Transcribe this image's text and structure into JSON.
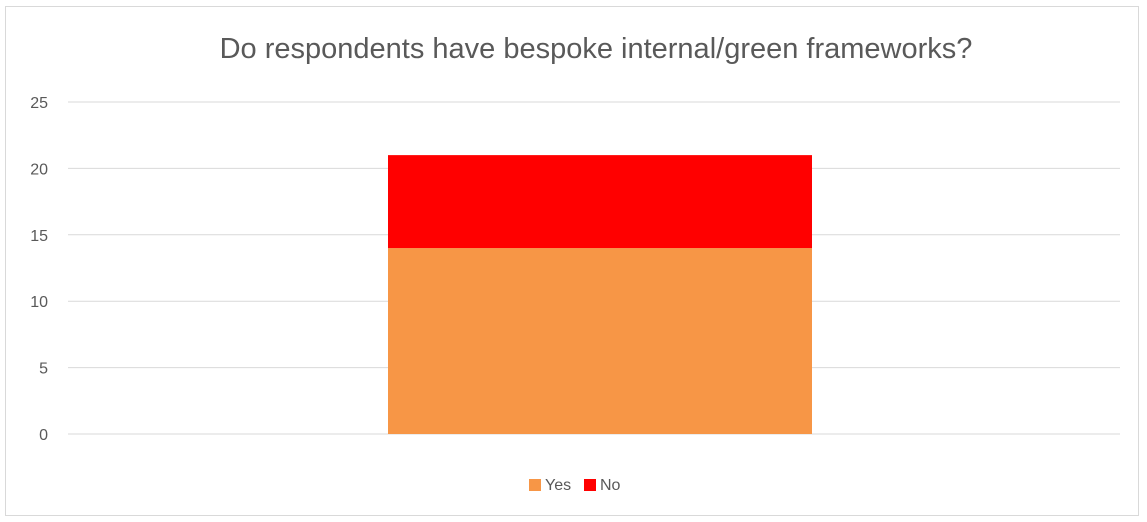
{
  "chart_data": {
    "type": "bar",
    "stacked": true,
    "title": "Do respondents have bespoke internal/green frameworks?",
    "xlabel": "",
    "ylabel": "",
    "categories": [
      ""
    ],
    "series": [
      {
        "name": "Yes",
        "values": [
          14
        ],
        "color": "#F79646"
      },
      {
        "name": "No",
        "values": [
          7
        ],
        "color": "#FF0000"
      }
    ],
    "ylim": [
      0,
      25
    ],
    "yticks": [
      "0",
      "5",
      "10",
      "15",
      "20",
      "25"
    ],
    "grid": true,
    "legend": "bottom"
  }
}
